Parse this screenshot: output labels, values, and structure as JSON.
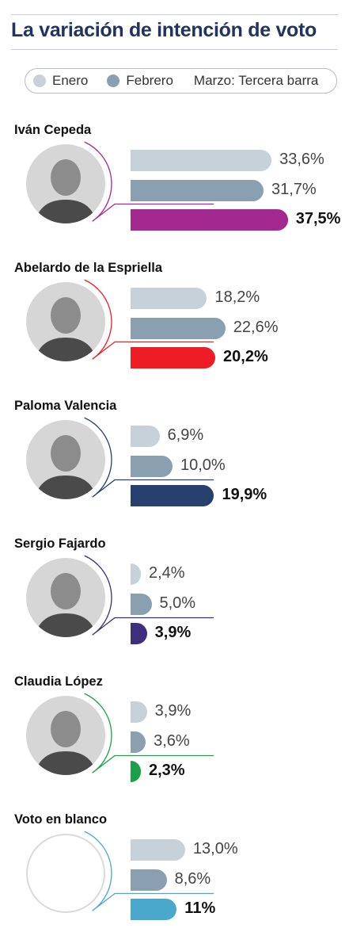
{
  "title": "La variación de intención de voto",
  "legend": {
    "items": [
      {
        "label": "Enero",
        "color": "#c6d1da"
      },
      {
        "label": "Febrero",
        "color": "#8a9fb0"
      }
    ],
    "third": "Marzo: Tercera barra"
  },
  "chart_data": {
    "type": "bar",
    "title": "La variación de intención de voto",
    "orientation": "horizontal",
    "series_names": [
      "Enero",
      "Febrero",
      "Marzo"
    ],
    "categories": [
      "Iván Cepeda",
      "Abelardo  de la Espriella",
      "Paloma Valencia",
      "Sergio Fajardo",
      "Claudia López",
      "Voto en blanco"
    ],
    "candidates": [
      {
        "name": "Iván Cepeda",
        "values": [
          33.6,
          31.7,
          37.5
        ],
        "labels": [
          "33,6%",
          "31,7%",
          "37,5%"
        ],
        "color": "#a3288f",
        "photo": "person-photo"
      },
      {
        "name": "Abelardo  de la Espriella",
        "values": [
          18.2,
          22.6,
          20.2
        ],
        "labels": [
          "18,2%",
          "22,6%",
          "20,2%"
        ],
        "color": "#ee1c25",
        "photo": "person-photo"
      },
      {
        "name": "Paloma Valencia",
        "values": [
          6.9,
          10.0,
          19.9
        ],
        "labels": [
          "6,9%",
          "10,0%",
          "19,9%"
        ],
        "color": "#27406e",
        "photo": "person-photo"
      },
      {
        "name": "Sergio Fajardo",
        "values": [
          2.4,
          5.0,
          3.9
        ],
        "labels": [
          "2,4%",
          "5,0%",
          "3,9%"
        ],
        "color": "#3f2e7e",
        "photo": "person-photo"
      },
      {
        "name": "Claudia López",
        "values": [
          3.9,
          3.6,
          2.3
        ],
        "labels": [
          "3,9%",
          "3,6%",
          "2,3%"
        ],
        "color": "#1a9f4a",
        "photo": "person-photo"
      },
      {
        "name": "Voto en blanco",
        "values": [
          13.0,
          8.6,
          11.0
        ],
        "labels": [
          "13,0%",
          "8,6%",
          "11%"
        ],
        "color": "#4aa8cc",
        "photo": ""
      }
    ],
    "month_colors": [
      "#c6d1da",
      "#8a9fb0"
    ],
    "grid": false,
    "legend_position": "top"
  }
}
